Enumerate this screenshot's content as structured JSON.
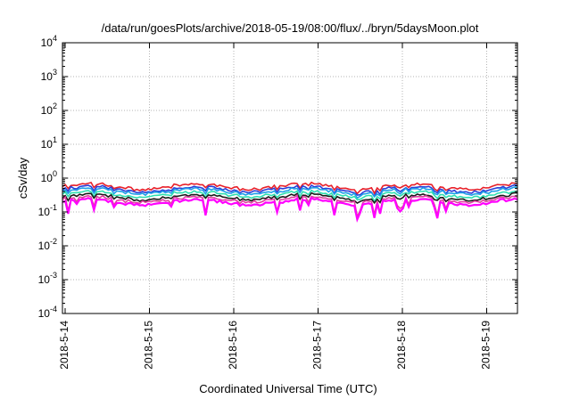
{
  "chart_data": {
    "type": "line",
    "title": "/data/run/goesPlots/archive/2018-05-19/08:00/flux/../bryn/5daysMoon.plot",
    "xlabel": "Coordinated Universal Time (UTC)",
    "ylabel": "cSv/day",
    "yscale": "log",
    "ylim": [
      0.0001,
      10000
    ],
    "xlim": [
      "2018-05-14",
      "2018-05-19 09:00"
    ],
    "grid": true,
    "y_ticks": [
      {
        "base": "10",
        "exp": "-4",
        "value": 0.0001
      },
      {
        "base": "10",
        "exp": "-3",
        "value": 0.001
      },
      {
        "base": "10",
        "exp": "-2",
        "value": 0.01
      },
      {
        "base": "10",
        "exp": "-1",
        "value": 0.1
      },
      {
        "base": "10",
        "exp": "0",
        "value": 1
      },
      {
        "base": "10",
        "exp": "1",
        "value": 10
      },
      {
        "base": "10",
        "exp": "2",
        "value": 100
      },
      {
        "base": "10",
        "exp": "3",
        "value": 1000
      },
      {
        "base": "10",
        "exp": "4",
        "value": 10000
      }
    ],
    "x_ticks": [
      "2018-5-14",
      "2018-5-15",
      "2018-5-16",
      "2018-5-17",
      "2018-5-18",
      "2018-5-19"
    ],
    "series": [
      {
        "color": "#e8202a",
        "level": 0.58
      },
      {
        "color": "#2a3fd9",
        "level": 0.48
      },
      {
        "color": "#1fa0e8",
        "level": 0.42
      },
      {
        "color": "#2ee0b0",
        "level": 0.34
      },
      {
        "color": "#1a1a1a",
        "level": 0.28
      },
      {
        "color": "#e040a0",
        "level": 0.24
      },
      {
        "color": "#ff00ff",
        "level": 0.2
      }
    ]
  }
}
